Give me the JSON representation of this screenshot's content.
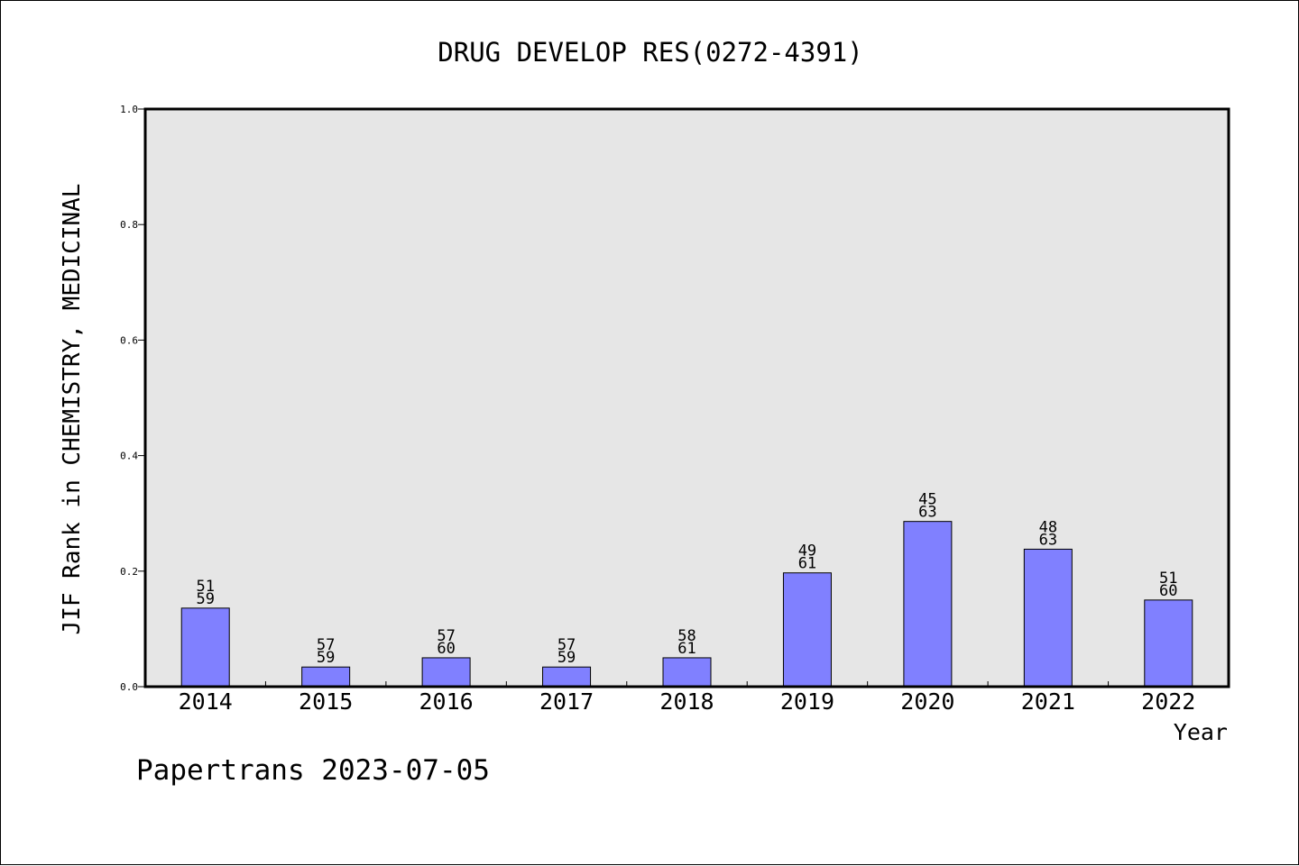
{
  "chart_data": {
    "type": "bar",
    "title": "DRUG DEVELOP RES(0272-4391)",
    "xlabel": "Year",
    "ylabel": "JIF Rank in CHEMISTRY, MEDICINAL",
    "ylim": [
      0,
      1.0
    ],
    "yticks": [
      "0.0",
      "0.2",
      "0.4",
      "0.6",
      "0.8",
      "1.0"
    ],
    "categories": [
      "2014",
      "2015",
      "2016",
      "2017",
      "2018",
      "2019",
      "2020",
      "2021",
      "2022"
    ],
    "values": [
      0.136,
      0.034,
      0.05,
      0.034,
      0.05,
      0.197,
      0.286,
      0.238,
      0.15
    ],
    "label_top": [
      "51",
      "57",
      "57",
      "57",
      "58",
      "49",
      "45",
      "48",
      "51"
    ],
    "label_bottom": [
      "59",
      "59",
      "60",
      "59",
      "61",
      "61",
      "63",
      "63",
      "60"
    ],
    "colors": {
      "bar": "#8080ff",
      "plot_bg": "#e6e6e6",
      "axis": "#000000"
    }
  },
  "footer": "Papertrans 2023-07-05"
}
